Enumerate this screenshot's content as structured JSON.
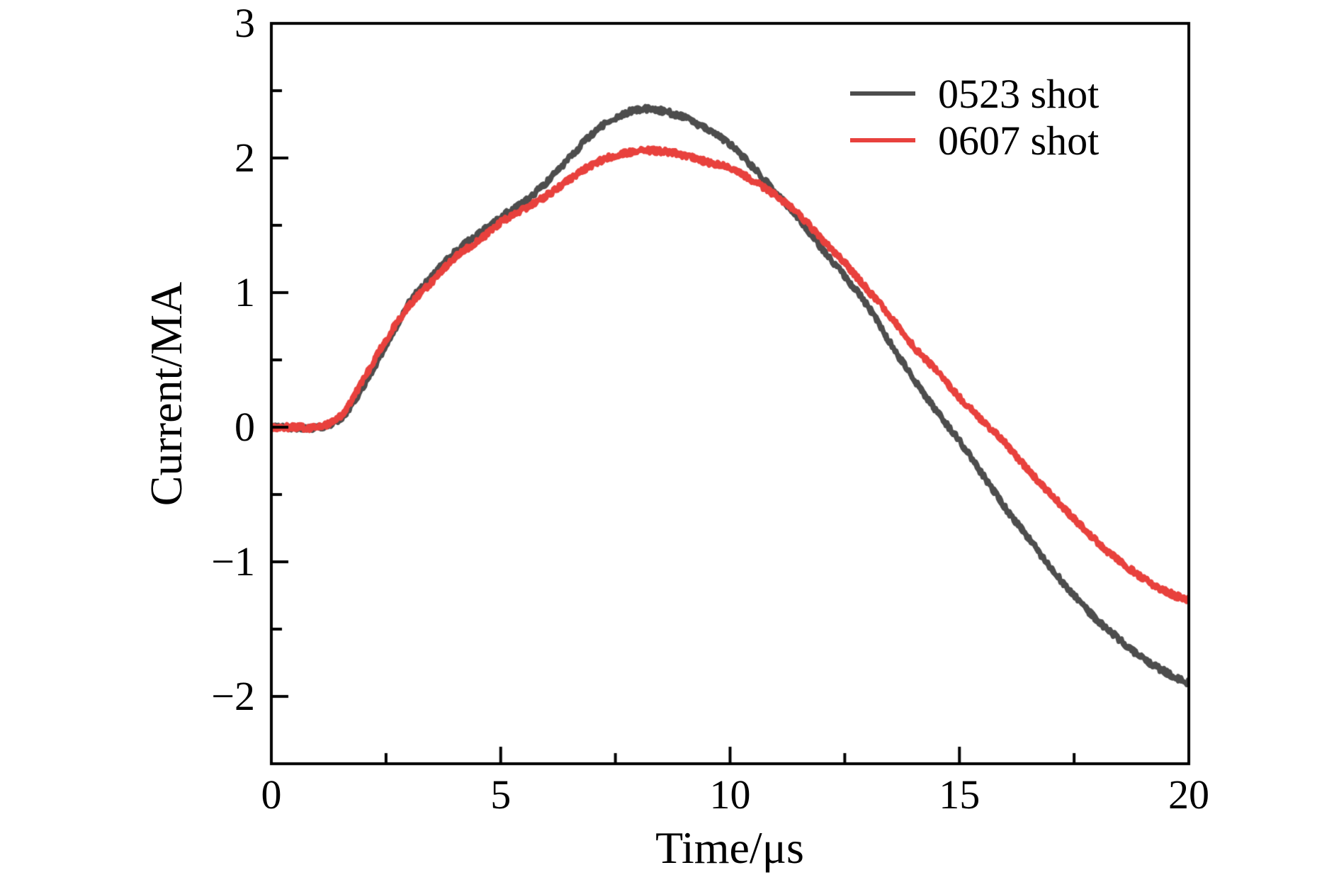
{
  "axes": {
    "x_label": "Time/μs",
    "y_label": "Current/MA",
    "x_ticks": [
      {
        "v": 0,
        "label": "0"
      },
      {
        "v": 5,
        "label": "5"
      },
      {
        "v": 10,
        "label": "10"
      },
      {
        "v": 15,
        "label": "15"
      },
      {
        "v": 20,
        "label": "20"
      }
    ],
    "y_ticks": [
      {
        "v": 3,
        "label": "3"
      },
      {
        "v": 2,
        "label": "2"
      },
      {
        "v": 1,
        "label": "1"
      },
      {
        "v": 0,
        "label": "0"
      },
      {
        "v": -1,
        "label": "−1"
      },
      {
        "v": -2,
        "label": "−2"
      }
    ],
    "x_minor_ticks": [
      2.5,
      7.5,
      12.5,
      17.5
    ],
    "y_minor_ticks": [
      -1.5,
      -0.5,
      0.5,
      1.5,
      2.5
    ]
  },
  "legend": {
    "items": [
      {
        "label": "0523 shot",
        "color": "#4d4d4d"
      },
      {
        "label": "0607 shot",
        "color": "#e8413d"
      }
    ]
  },
  "colors": {
    "axis": "#000000",
    "background": "#ffffff"
  },
  "chart_data": {
    "type": "line",
    "title": "",
    "xlabel": "Time/μs",
    "ylabel": "Current/MA",
    "xlim": [
      0,
      20
    ],
    "ylim": [
      -2.5,
      3
    ],
    "grid": false,
    "legend_position": "upper right",
    "x_step": 0.5,
    "series": [
      {
        "name": "0523 shot",
        "color": "#4d4d4d",
        "x_start": 0,
        "y": [
          0.0,
          0.0,
          0.0,
          0.06,
          0.3,
          0.6,
          0.92,
          1.12,
          1.3,
          1.43,
          1.56,
          1.67,
          1.82,
          2.0,
          2.18,
          2.3,
          2.36,
          2.35,
          2.3,
          2.21,
          2.1,
          1.93,
          1.74,
          1.55,
          1.33,
          1.12,
          0.9,
          0.62,
          0.36,
          0.12,
          -0.1,
          -0.35,
          -0.6,
          -0.82,
          -1.05,
          -1.25,
          -1.43,
          -1.58,
          -1.72,
          -1.82,
          -1.9
        ]
      },
      {
        "name": "0607 shot",
        "color": "#e8413d",
        "x_start": 0,
        "y": [
          0.0,
          0.0,
          0.0,
          0.08,
          0.35,
          0.65,
          0.9,
          1.08,
          1.26,
          1.38,
          1.52,
          1.62,
          1.72,
          1.84,
          1.95,
          2.02,
          2.05,
          2.05,
          2.02,
          1.97,
          1.93,
          1.83,
          1.72,
          1.58,
          1.4,
          1.22,
          1.02,
          0.82,
          0.6,
          0.42,
          0.22,
          0.05,
          -0.12,
          -0.32,
          -0.5,
          -0.68,
          -0.85,
          -1.0,
          -1.12,
          -1.22,
          -1.28
        ]
      }
    ]
  }
}
